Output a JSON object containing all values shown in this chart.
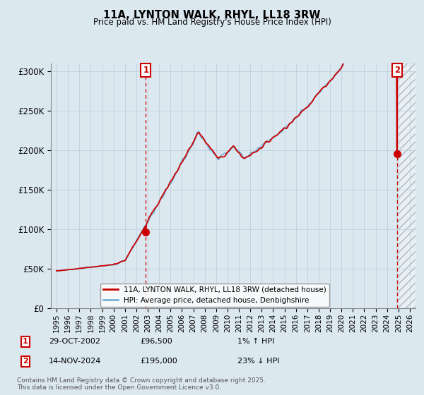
{
  "title": "11A, LYNTON WALK, RHYL, LL18 3RW",
  "subtitle": "Price paid vs. HM Land Registry's House Price Index (HPI)",
  "legend_line1": "11A, LYNTON WALK, RHYL, LL18 3RW (detached house)",
  "legend_line2": "HPI: Average price, detached house, Denbighshire",
  "marker1_date": "29-OCT-2002",
  "marker1_price": "£96,500",
  "marker1_hpi": "1% ↑ HPI",
  "marker1_x": 2002.83,
  "marker1_y": 96500,
  "marker2_date": "14-NOV-2024",
  "marker2_price": "£195,000",
  "marker2_hpi": "23% ↓ HPI",
  "marker2_x": 2024.87,
  "marker2_y": 195000,
  "copyright": "Contains HM Land Registry data © Crown copyright and database right 2025.\nThis data is licensed under the Open Government Licence v3.0.",
  "hpi_color": "#7ab3d4",
  "price_color": "#cc0000",
  "background_color": "#dce8f0",
  "plot_bg_color": "#dce8f0",
  "grid_color": "#b8ccd8",
  "ylim": [
    0,
    310000
  ],
  "xlim": [
    1994.5,
    2026.5
  ],
  "yticks": [
    0,
    50000,
    100000,
    150000,
    200000,
    250000,
    300000
  ],
  "ytick_labels": [
    "£0",
    "£50K",
    "£100K",
    "£150K",
    "£200K",
    "£250K",
    "£300K"
  ]
}
